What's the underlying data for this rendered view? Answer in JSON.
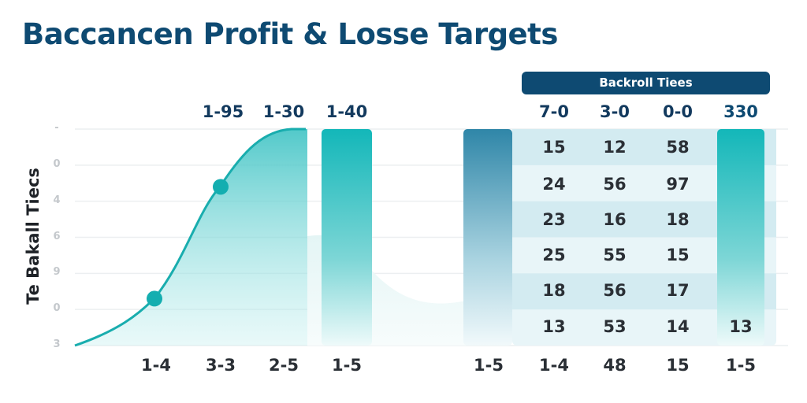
{
  "title": "Baccancen Profit & Losse Targets",
  "chart_data": {
    "type": "area+bar+table",
    "title": "Baccancen Profit & Losse Targets",
    "ylabel": "Te Bakall Tiecs",
    "y_tick_labels": [
      "3",
      "0",
      "9",
      "6",
      "4",
      "0",
      "-"
    ],
    "grid": true,
    "accent_color": "#1ab3b5",
    "table_bar_color": "#2f86a8",
    "area_series": {
      "categories": [
        "1-4",
        "3-3"
      ],
      "points": [
        1.3,
        4.4
      ]
    },
    "top_labels": [
      "1-95",
      "1-30",
      "1-40"
    ],
    "x_tick_labels": [
      "1-4",
      "3-3",
      "2-5",
      "1-5",
      "1-5",
      "1-4",
      "48",
      "15",
      "1-5"
    ],
    "table": {
      "title": "Backroll Tiees",
      "headers": [
        "7-0",
        "3-0",
        "0-0",
        "330"
      ],
      "rows": [
        [
          "15",
          "12",
          "58",
          ""
        ],
        [
          "24",
          "56",
          "97",
          ""
        ],
        [
          "23",
          "16",
          "18",
          ""
        ],
        [
          "25",
          "55",
          "15",
          ""
        ],
        [
          "18",
          "56",
          "17",
          ""
        ],
        [
          "13",
          "53",
          "14",
          "13"
        ]
      ]
    }
  }
}
